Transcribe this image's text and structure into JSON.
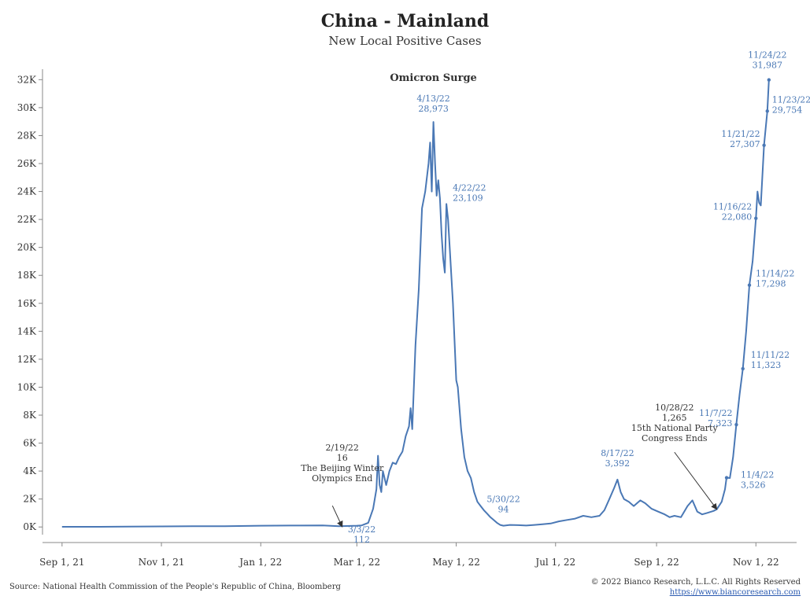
{
  "chart_data": {
    "type": "line",
    "title": "China - Mainland",
    "subtitle": "New Local Positive Cases",
    "series_color": "#4a78b5",
    "label_color": "#4a78b5",
    "annotation_color": "#333333",
    "x_ticks": [
      {
        "label": "Sep 1, 21",
        "day": 0
      },
      {
        "label": "Nov 1, 21",
        "day": 61
      },
      {
        "label": "Jan 1, 22",
        "day": 122
      },
      {
        "label": "Mar 1, 22",
        "day": 181
      },
      {
        "label": "May 1, 22",
        "day": 242
      },
      {
        "label": "Jul 1, 22",
        "day": 303
      },
      {
        "label": "Sep 1, 22",
        "day": 365
      },
      {
        "label": "Nov 1, 22",
        "day": 426
      }
    ],
    "y_ticks": [
      {
        "label": "0K",
        "value": 0
      },
      {
        "label": "2K",
        "value": 2000
      },
      {
        "label": "4K",
        "value": 4000
      },
      {
        "label": "6K",
        "value": 6000
      },
      {
        "label": "8K",
        "value": 8000
      },
      {
        "label": "10K",
        "value": 10000
      },
      {
        "label": "12K",
        "value": 12000
      },
      {
        "label": "14K",
        "value": 14000
      },
      {
        "label": "16K",
        "value": 16000
      },
      {
        "label": "18K",
        "value": 18000
      },
      {
        "label": "20K",
        "value": 20000
      },
      {
        "label": "22K",
        "value": 22000
      },
      {
        "label": "24K",
        "value": 24000
      },
      {
        "label": "26K",
        "value": 26000
      },
      {
        "label": "28K",
        "value": 28000
      },
      {
        "label": "30K",
        "value": 30000
      },
      {
        "label": "32K",
        "value": 32000
      }
    ],
    "xlim": [
      -12,
      451
    ],
    "ylim": [
      -100,
      32300
    ],
    "points": [
      [
        0,
        10
      ],
      [
        20,
        15
      ],
      [
        40,
        30
      ],
      [
        61,
        40
      ],
      [
        80,
        50
      ],
      [
        100,
        60
      ],
      [
        122,
        90
      ],
      [
        140,
        100
      ],
      [
        160,
        110
      ],
      [
        170,
        60
      ],
      [
        181,
        90
      ],
      [
        184,
        112
      ],
      [
        188,
        300
      ],
      [
        191,
        1300
      ],
      [
        193,
        2700
      ],
      [
        194,
        5100
      ],
      [
        195,
        3000
      ],
      [
        196,
        2500
      ],
      [
        197,
        4000
      ],
      [
        199,
        3000
      ],
      [
        201,
        4000
      ],
      [
        203,
        4600
      ],
      [
        205,
        4500
      ],
      [
        207,
        5000
      ],
      [
        209,
        5400
      ],
      [
        211,
        6500
      ],
      [
        213,
        7200
      ],
      [
        214,
        8500
      ],
      [
        215,
        7000
      ],
      [
        217,
        13000
      ],
      [
        219,
        17000
      ],
      [
        221,
        22800
      ],
      [
        223,
        24000
      ],
      [
        225,
        26000
      ],
      [
        226,
        27500
      ],
      [
        227,
        24000
      ],
      [
        228,
        28973
      ],
      [
        229,
        26000
      ],
      [
        230,
        23700
      ],
      [
        231,
        24800
      ],
      [
        232,
        23500
      ],
      [
        233,
        21000
      ],
      [
        234,
        19200
      ],
      [
        235,
        18200
      ],
      [
        236,
        23109
      ],
      [
        237,
        22000
      ],
      [
        238,
        20000
      ],
      [
        240,
        16000
      ],
      [
        242,
        10500
      ],
      [
        243,
        10000
      ],
      [
        245,
        7000
      ],
      [
        247,
        5000
      ],
      [
        249,
        4000
      ],
      [
        251,
        3500
      ],
      [
        253,
        2500
      ],
      [
        255,
        1800
      ],
      [
        257,
        1500
      ],
      [
        259,
        1200
      ],
      [
        261,
        950
      ],
      [
        263,
        700
      ],
      [
        265,
        500
      ],
      [
        267,
        300
      ],
      [
        269,
        150
      ],
      [
        271,
        94
      ],
      [
        275,
        150
      ],
      [
        280,
        130
      ],
      [
        285,
        100
      ],
      [
        290,
        150
      ],
      [
        295,
        200
      ],
      [
        300,
        250
      ],
      [
        305,
        400
      ],
      [
        310,
        500
      ],
      [
        315,
        600
      ],
      [
        320,
        800
      ],
      [
        325,
        700
      ],
      [
        330,
        800
      ],
      [
        333,
        1200
      ],
      [
        336,
        2000
      ],
      [
        339,
        2800
      ],
      [
        341,
        3392
      ],
      [
        343,
        2500
      ],
      [
        345,
        2000
      ],
      [
        348,
        1800
      ],
      [
        351,
        1500
      ],
      [
        355,
        1900
      ],
      [
        358,
        1700
      ],
      [
        362,
        1300
      ],
      [
        366,
        1100
      ],
      [
        370,
        900
      ],
      [
        373,
        700
      ],
      [
        376,
        800
      ],
      [
        380,
        700
      ],
      [
        384,
        1500
      ],
      [
        387,
        1900
      ],
      [
        390,
        1100
      ],
      [
        393,
        900
      ],
      [
        396,
        1000
      ],
      [
        400,
        1150
      ],
      [
        402,
        1265
      ],
      [
        405,
        1800
      ],
      [
        407,
        2700
      ],
      [
        408,
        3526
      ],
      [
        410,
        3500
      ],
      [
        412,
        5000
      ],
      [
        414,
        7323
      ],
      [
        416,
        9500
      ],
      [
        418,
        11323
      ],
      [
        420,
        14000
      ],
      [
        422,
        17298
      ],
      [
        424,
        19000
      ],
      [
        426,
        22080
      ],
      [
        427,
        24000
      ],
      [
        428,
        23200
      ],
      [
        429,
        23000
      ],
      [
        431,
        27307
      ],
      [
        433,
        29754
      ],
      [
        434,
        31987
      ]
    ],
    "labels": [
      {
        "id": "apr13",
        "date": "4/13/22",
        "value": "28,973",
        "day": 228,
        "y": 28973,
        "anchor": "middle",
        "dx": 0,
        "dy": -26,
        "marker": false
      },
      {
        "id": "apr22",
        "date": "4/22/22",
        "value": "23,109",
        "day": 236,
        "y": 23109,
        "anchor": "start",
        "dx": 8,
        "dy": -17,
        "marker": false
      },
      {
        "id": "may30",
        "date": "5/30/22",
        "value": "94",
        "day": 271,
        "y": 94,
        "anchor": "middle",
        "dx": 0,
        "dy": -30,
        "marker": false
      },
      {
        "id": "aug17",
        "date": "8/17/22",
        "value": "3,392",
        "day": 341,
        "y": 3392,
        "anchor": "middle",
        "dx": 0,
        "dy": -30,
        "marker": false
      },
      {
        "id": "mar3",
        "date": "3/3/22",
        "value": "112",
        "day": 184,
        "y": 112,
        "anchor": "middle",
        "dx": 0,
        "dy": 9,
        "marker": false
      },
      {
        "id": "nov4",
        "date": "11/4/22",
        "value": "3,526",
        "day": 408,
        "y": 3526,
        "anchor": "start",
        "dx": 18,
        "dy": 0,
        "marker": true
      },
      {
        "id": "nov7",
        "date": "11/7/22",
        "value": "7,323",
        "day": 414,
        "y": 7323,
        "anchor": "end",
        "dx": -5,
        "dy": -11,
        "marker": true
      },
      {
        "id": "nov11",
        "date": "11/11/22",
        "value": "11,323",
        "day": 418,
        "y": 11323,
        "anchor": "start",
        "dx": 10,
        "dy": -14,
        "marker": true
      },
      {
        "id": "nov14",
        "date": "11/14/22",
        "value": "17,298",
        "day": 422,
        "y": 17298,
        "anchor": "start",
        "dx": 8,
        "dy": -11,
        "marker": true
      },
      {
        "id": "nov16",
        "date": "11/16/22",
        "value": "22,080",
        "day": 426,
        "y": 22080,
        "anchor": "end",
        "dx": -5,
        "dy": -11,
        "marker": true
      },
      {
        "id": "nov21",
        "date": "11/21/22",
        "value": "27,307",
        "day": 431,
        "y": 27307,
        "anchor": "end",
        "dx": -5,
        "dy": -11,
        "marker": true
      },
      {
        "id": "nov23",
        "date": "11/23/22",
        "value": "29,754",
        "day": 433,
        "y": 29754,
        "anchor": "start",
        "dx": 6,
        "dy": -11,
        "marker": true
      },
      {
        "id": "nov24",
        "date": "11/24/22",
        "value": "31,987",
        "day": 434,
        "y": 31987,
        "anchor": "middle",
        "dx": -2,
        "dy": -28,
        "marker": true
      }
    ],
    "annotations": [
      {
        "id": "omicron",
        "lines": [
          "Omicron Surge"
        ],
        "bold": true,
        "day": 228,
        "y": 31900,
        "arrow": null
      },
      {
        "id": "olympics",
        "lines": [
          "2/19/22",
          "16",
          "The Beijing Winter",
          "Olympics End"
        ],
        "bold": false,
        "day": 172,
        "y": 5480,
        "arrow": {
          "from_day": 166,
          "from_y": 1520,
          "to_day": 172,
          "to_y": 16
        }
      },
      {
        "id": "congress",
        "lines": [
          "10/28/22",
          "1,265",
          "15th National Party",
          "Congress Ends"
        ],
        "bold": false,
        "day": 376,
        "y": 8330,
        "arrow": {
          "from_day": 376,
          "from_y": 5350,
          "to_day": 402,
          "to_y": 1265
        }
      }
    ]
  },
  "footer": {
    "source": "Source: National Health Commission of the People's Republic of China, Bloomberg",
    "copyright": "© 2022 Bianco Research, L.L.C. All Rights Reserved",
    "website": "https://www.biancoresearch.com"
  }
}
